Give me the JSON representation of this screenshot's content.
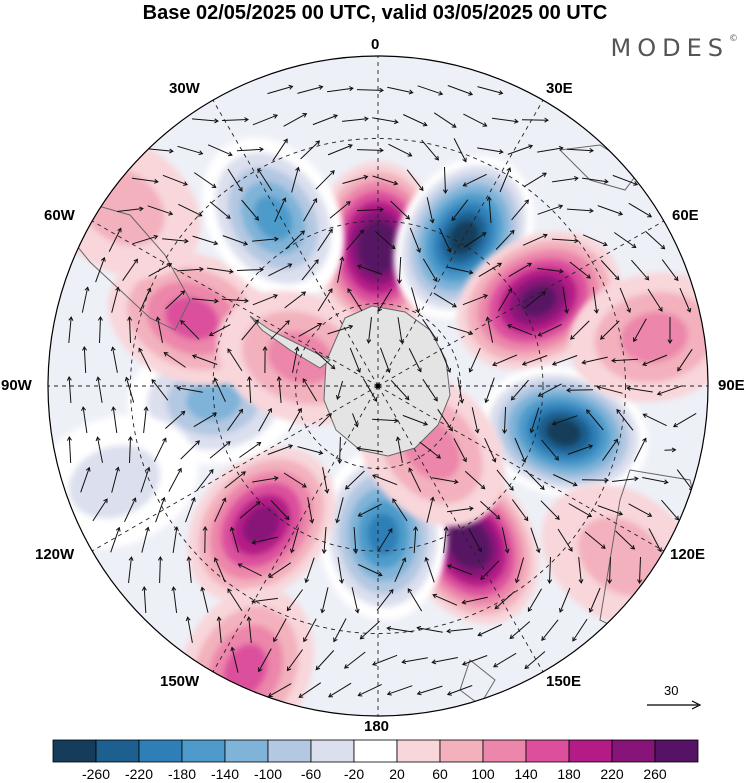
{
  "title": "Base 02/05/2025 00 UTC, valid 03/05/2025 00 UTC",
  "brand": {
    "name": "MODES",
    "mark": "©"
  },
  "longitude_labels": {
    "0": "0",
    "30E": "30E",
    "60E": "60E",
    "90E": "90E",
    "120E": "120E",
    "150E": "150E",
    "180": "180",
    "150W": "150W",
    "120W": "120W",
    "90W": "90W",
    "60W": "60W",
    "30W": "30W"
  },
  "reference_vector": {
    "value": "30"
  },
  "colorbar": {
    "colors": [
      "#153c5a",
      "#1d5f8e",
      "#2e7fb8",
      "#4e9bcb",
      "#7fb3d8",
      "#b3c8e2",
      "#dcdfee",
      "#ffffff",
      "#f8d6da",
      "#f3b1bd",
      "#ec86aa",
      "#db4f9d",
      "#b51b87",
      "#871478",
      "#561264"
    ],
    "tick_labels": [
      "-260",
      "-220",
      "-180",
      "-140",
      "-100",
      "-60",
      "-20",
      "20",
      "60",
      "100",
      "140",
      "180",
      "220",
      "260"
    ]
  },
  "map_data": {
    "projection": "south-polar-stereographic",
    "anomalies": [
      {
        "lon": 0,
        "colat": 0.42,
        "value": 260
      },
      {
        "lon": 30,
        "colat": 0.52,
        "value": -260
      },
      {
        "lon": 62,
        "colat": 0.55,
        "value": 240
      },
      {
        "lon": 104,
        "colat": 0.58,
        "value": -260
      },
      {
        "lon": 150,
        "colat": 0.55,
        "value": 260
      },
      {
        "lon": 178,
        "colat": 0.45,
        "value": -180
      },
      {
        "lon": -140,
        "colat": 0.55,
        "value": 200
      },
      {
        "lon": -95,
        "colat": 0.5,
        "value": -100
      },
      {
        "lon": -70,
        "colat": 0.6,
        "value": 100
      },
      {
        "lon": -32,
        "colat": 0.6,
        "value": -140
      },
      {
        "lon": -55,
        "colat": 0.95,
        "value": 40
      },
      {
        "lon": 80,
        "colat": 0.85,
        "value": 60
      },
      {
        "lon": 125,
        "colat": 0.9,
        "value": 40
      },
      {
        "lon": -155,
        "colat": 0.95,
        "value": 100
      },
      {
        "lon": -110,
        "colat": 0.85,
        "value": -40
      },
      {
        "lon": -70,
        "colat": 0.25,
        "value": 60
      },
      {
        "lon": 140,
        "colat": 0.25,
        "value": 60
      }
    ]
  }
}
